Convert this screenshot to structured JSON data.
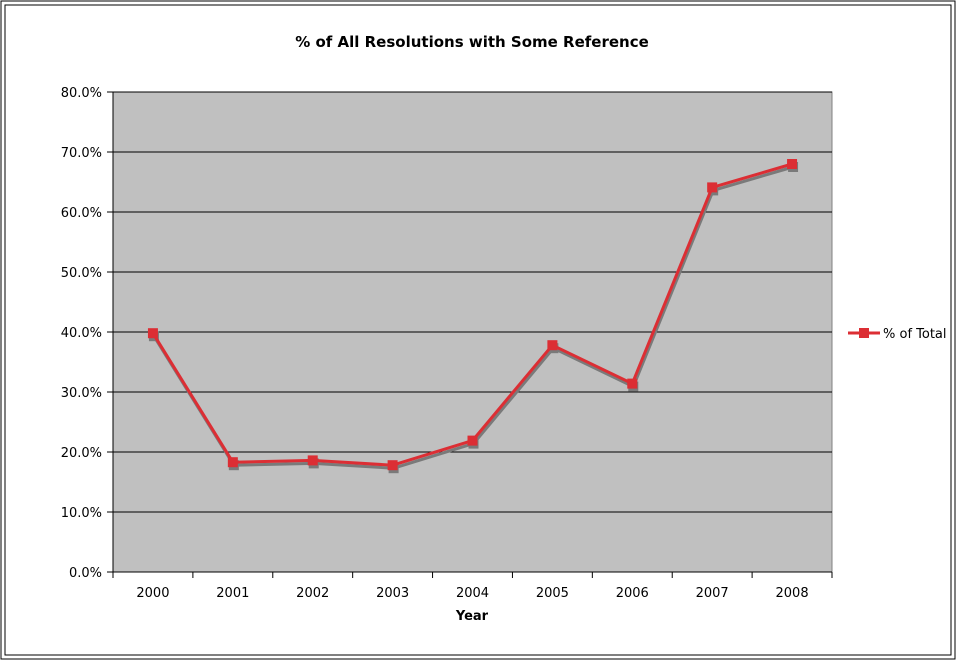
{
  "chart_data": {
    "type": "line",
    "title": "% of All Resolutions with Some Reference",
    "xlabel": "Year",
    "ylabel": "",
    "categories": [
      "2000",
      "2001",
      "2002",
      "2003",
      "2004",
      "2005",
      "2006",
      "2007",
      "2008"
    ],
    "series": [
      {
        "name": "% of Total",
        "values": [
          39.8,
          18.3,
          18.6,
          17.8,
          21.9,
          37.8,
          31.4,
          64.1,
          68.0
        ],
        "color": "#dc2e34",
        "marker": "square"
      }
    ],
    "ylim": [
      0,
      80
    ],
    "yticks": [
      "0.0%",
      "10.0%",
      "20.0%",
      "30.0%",
      "40.0%",
      "50.0%",
      "60.0%",
      "70.0%",
      "80.0%"
    ],
    "y_tick_values": [
      0,
      10,
      20,
      30,
      40,
      50,
      60,
      70,
      80
    ],
    "grid": true,
    "plot_background": "#c0c0c0",
    "gridline_color": "#000000",
    "legend_position": "right"
  }
}
